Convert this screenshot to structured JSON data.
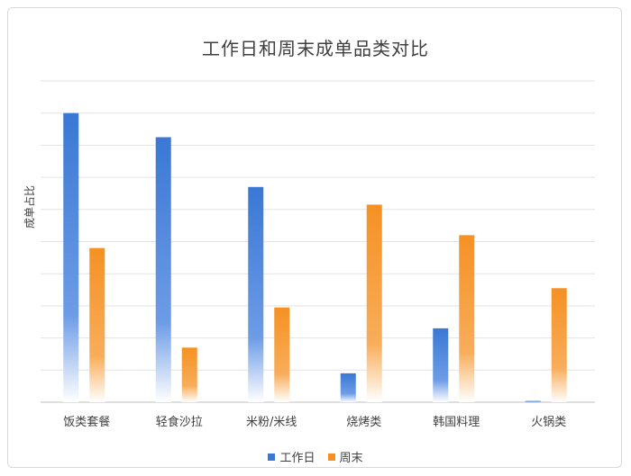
{
  "chart_data": {
    "type": "bar",
    "title": "工作日和周末成单品类对比",
    "xlabel": "",
    "ylabel": "成单占比",
    "categories": [
      "饭类套餐",
      "轻食沙拉",
      "米粉/米线",
      "烧烤类",
      "韩国料理",
      "火锅类"
    ],
    "series": [
      {
        "name": "工作日",
        "values": [
          9.0,
          8.25,
          6.7,
          0.9,
          2.3,
          0.04
        ]
      },
      {
        "name": "周末",
        "values": [
          4.8,
          1.7,
          2.95,
          6.15,
          5.2,
          3.55
        ]
      }
    ],
    "ylim": [
      0,
      10
    ],
    "grid": true,
    "legend_position": "bottom",
    "colors": {
      "工作日": "#3a78d4",
      "周末": "#f59123"
    }
  }
}
